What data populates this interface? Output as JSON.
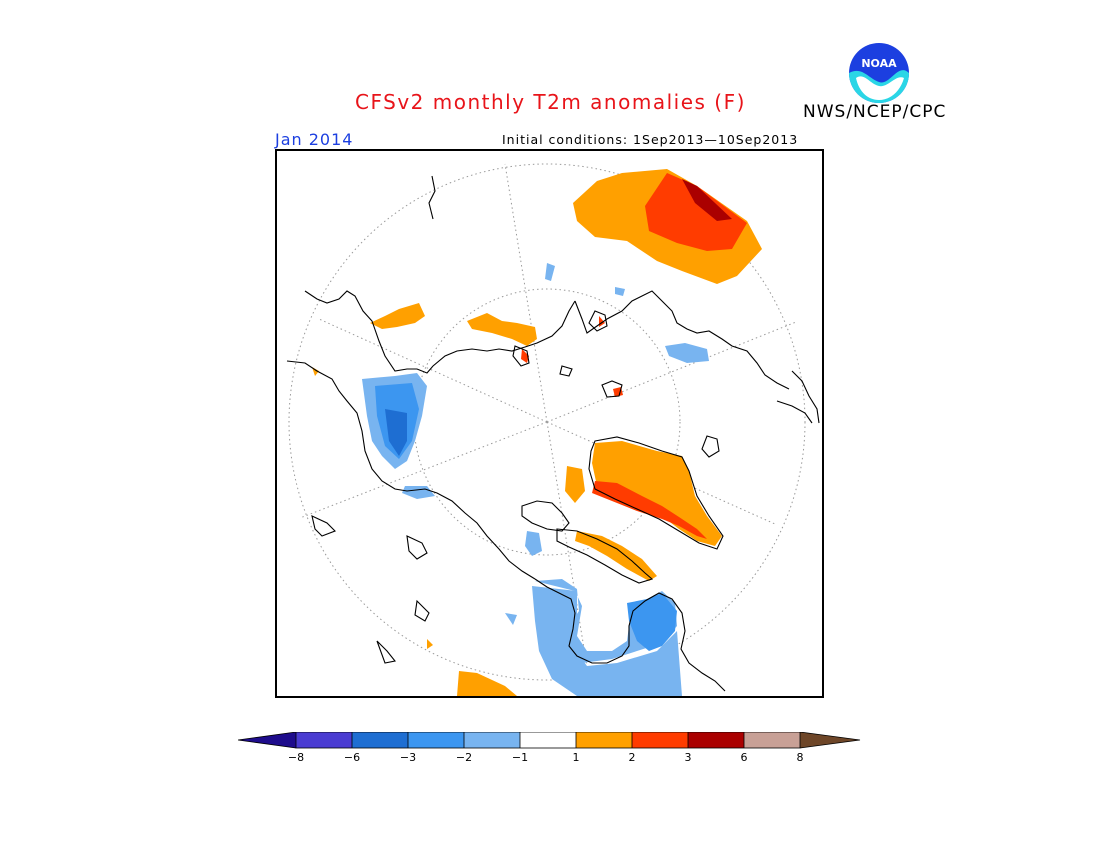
{
  "header": {
    "title": "CFSv2 monthly T2m anomalies (F)",
    "agency": "NWS/NCEP/CPC",
    "month": "Jan 2014",
    "initial_conditions": "Initial conditions: 1Sep2013—10Sep2013"
  },
  "logo": {
    "icon": "noaa-logo-icon",
    "text": "NOAA"
  },
  "map": {
    "projection": "north-polar-stereographic",
    "variable": "2m temperature anomaly",
    "units": "F",
    "regions": [
      {
        "area": "northern Siberia / Eurasia",
        "anomaly_range": "+1 to +6"
      },
      {
        "area": "Scandinavia / Northern Europe",
        "anomaly_range": "+1 to +3"
      },
      {
        "area": "western Alaska / Bering Strait",
        "anomaly_range": "-1 to -6"
      },
      {
        "area": "Hudson Bay / central Canada",
        "anomaly_range": "-1 to -3"
      },
      {
        "area": "Labrador Sea coast",
        "anomaly_range": "-1 to -2"
      },
      {
        "area": "Greenland coast / Baffin Island",
        "anomaly_range": "+1 to +2"
      }
    ]
  },
  "colorbar": {
    "labels": [
      "−8",
      "−6",
      "−3",
      "−2",
      "−1",
      "1",
      "2",
      "3",
      "6",
      "8"
    ],
    "colors": {
      "lt_neg8": "#1e0c8c",
      "neg8_neg6": "#4a3cd2",
      "neg6_neg3": "#1e6ed2",
      "neg3_neg2": "#3c96f0",
      "neg2_neg1": "#78b4f0",
      "neutral": "#ffffff",
      "pos1_pos2": "#ffa000",
      "pos2_pos3": "#ff3c00",
      "pos3_pos6": "#aa0000",
      "pos6_pos8": "#c8a096",
      "gt_pos8": "#6e4628"
    }
  }
}
